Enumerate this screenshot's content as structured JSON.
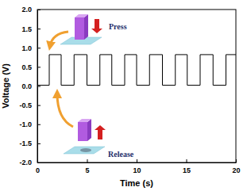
{
  "chart_data": {
    "type": "line",
    "x_label": "Time (s)",
    "y_label": "Voltage (V)",
    "annotations": [
      "Press",
      "Release"
    ],
    "x": [
      0,
      1.2,
      1.2,
      2.4,
      2.4,
      3.7,
      3.7,
      5.0,
      5.0,
      6.3,
      6.3,
      7.5,
      7.5,
      8.8,
      8.8,
      10.0,
      10.0,
      11.3,
      11.3,
      12.6,
      12.6,
      13.9,
      13.9,
      15.1,
      15.1,
      16.4,
      16.4,
      17.7,
      17.7,
      19.0,
      19.0,
      20
    ],
    "values": [
      0.02,
      0.02,
      0.82,
      0.82,
      0.02,
      0.02,
      0.82,
      0.82,
      0.02,
      0.02,
      0.82,
      0.82,
      0.02,
      0.02,
      0.82,
      0.82,
      0.02,
      0.02,
      0.82,
      0.82,
      0.02,
      0.02,
      0.82,
      0.82,
      0.02,
      0.02,
      0.82,
      0.82,
      0.02,
      0.02,
      0.82,
      0.82
    ],
    "color": "#000000",
    "xlim": [
      0,
      20
    ],
    "xticks": [
      0,
      5,
      10,
      15,
      20
    ],
    "ylim": [
      -2,
      2
    ],
    "yticks": [
      {
        "value": -2,
        "label": "-2.0"
      },
      {
        "value": -1.5,
        "label": "-1.5"
      },
      {
        "value": -1,
        "label": "-1.0"
      },
      {
        "value": -0.5,
        "label": "-0.5"
      },
      {
        "value": 0,
        "label": "0.0"
      },
      {
        "value": 0.5,
        "label": "0.5"
      },
      {
        "value": 1,
        "label": "1.0"
      },
      {
        "value": 1.5,
        "label": "1.5"
      },
      {
        "value": 2,
        "label": "2.0"
      }
    ]
  }
}
